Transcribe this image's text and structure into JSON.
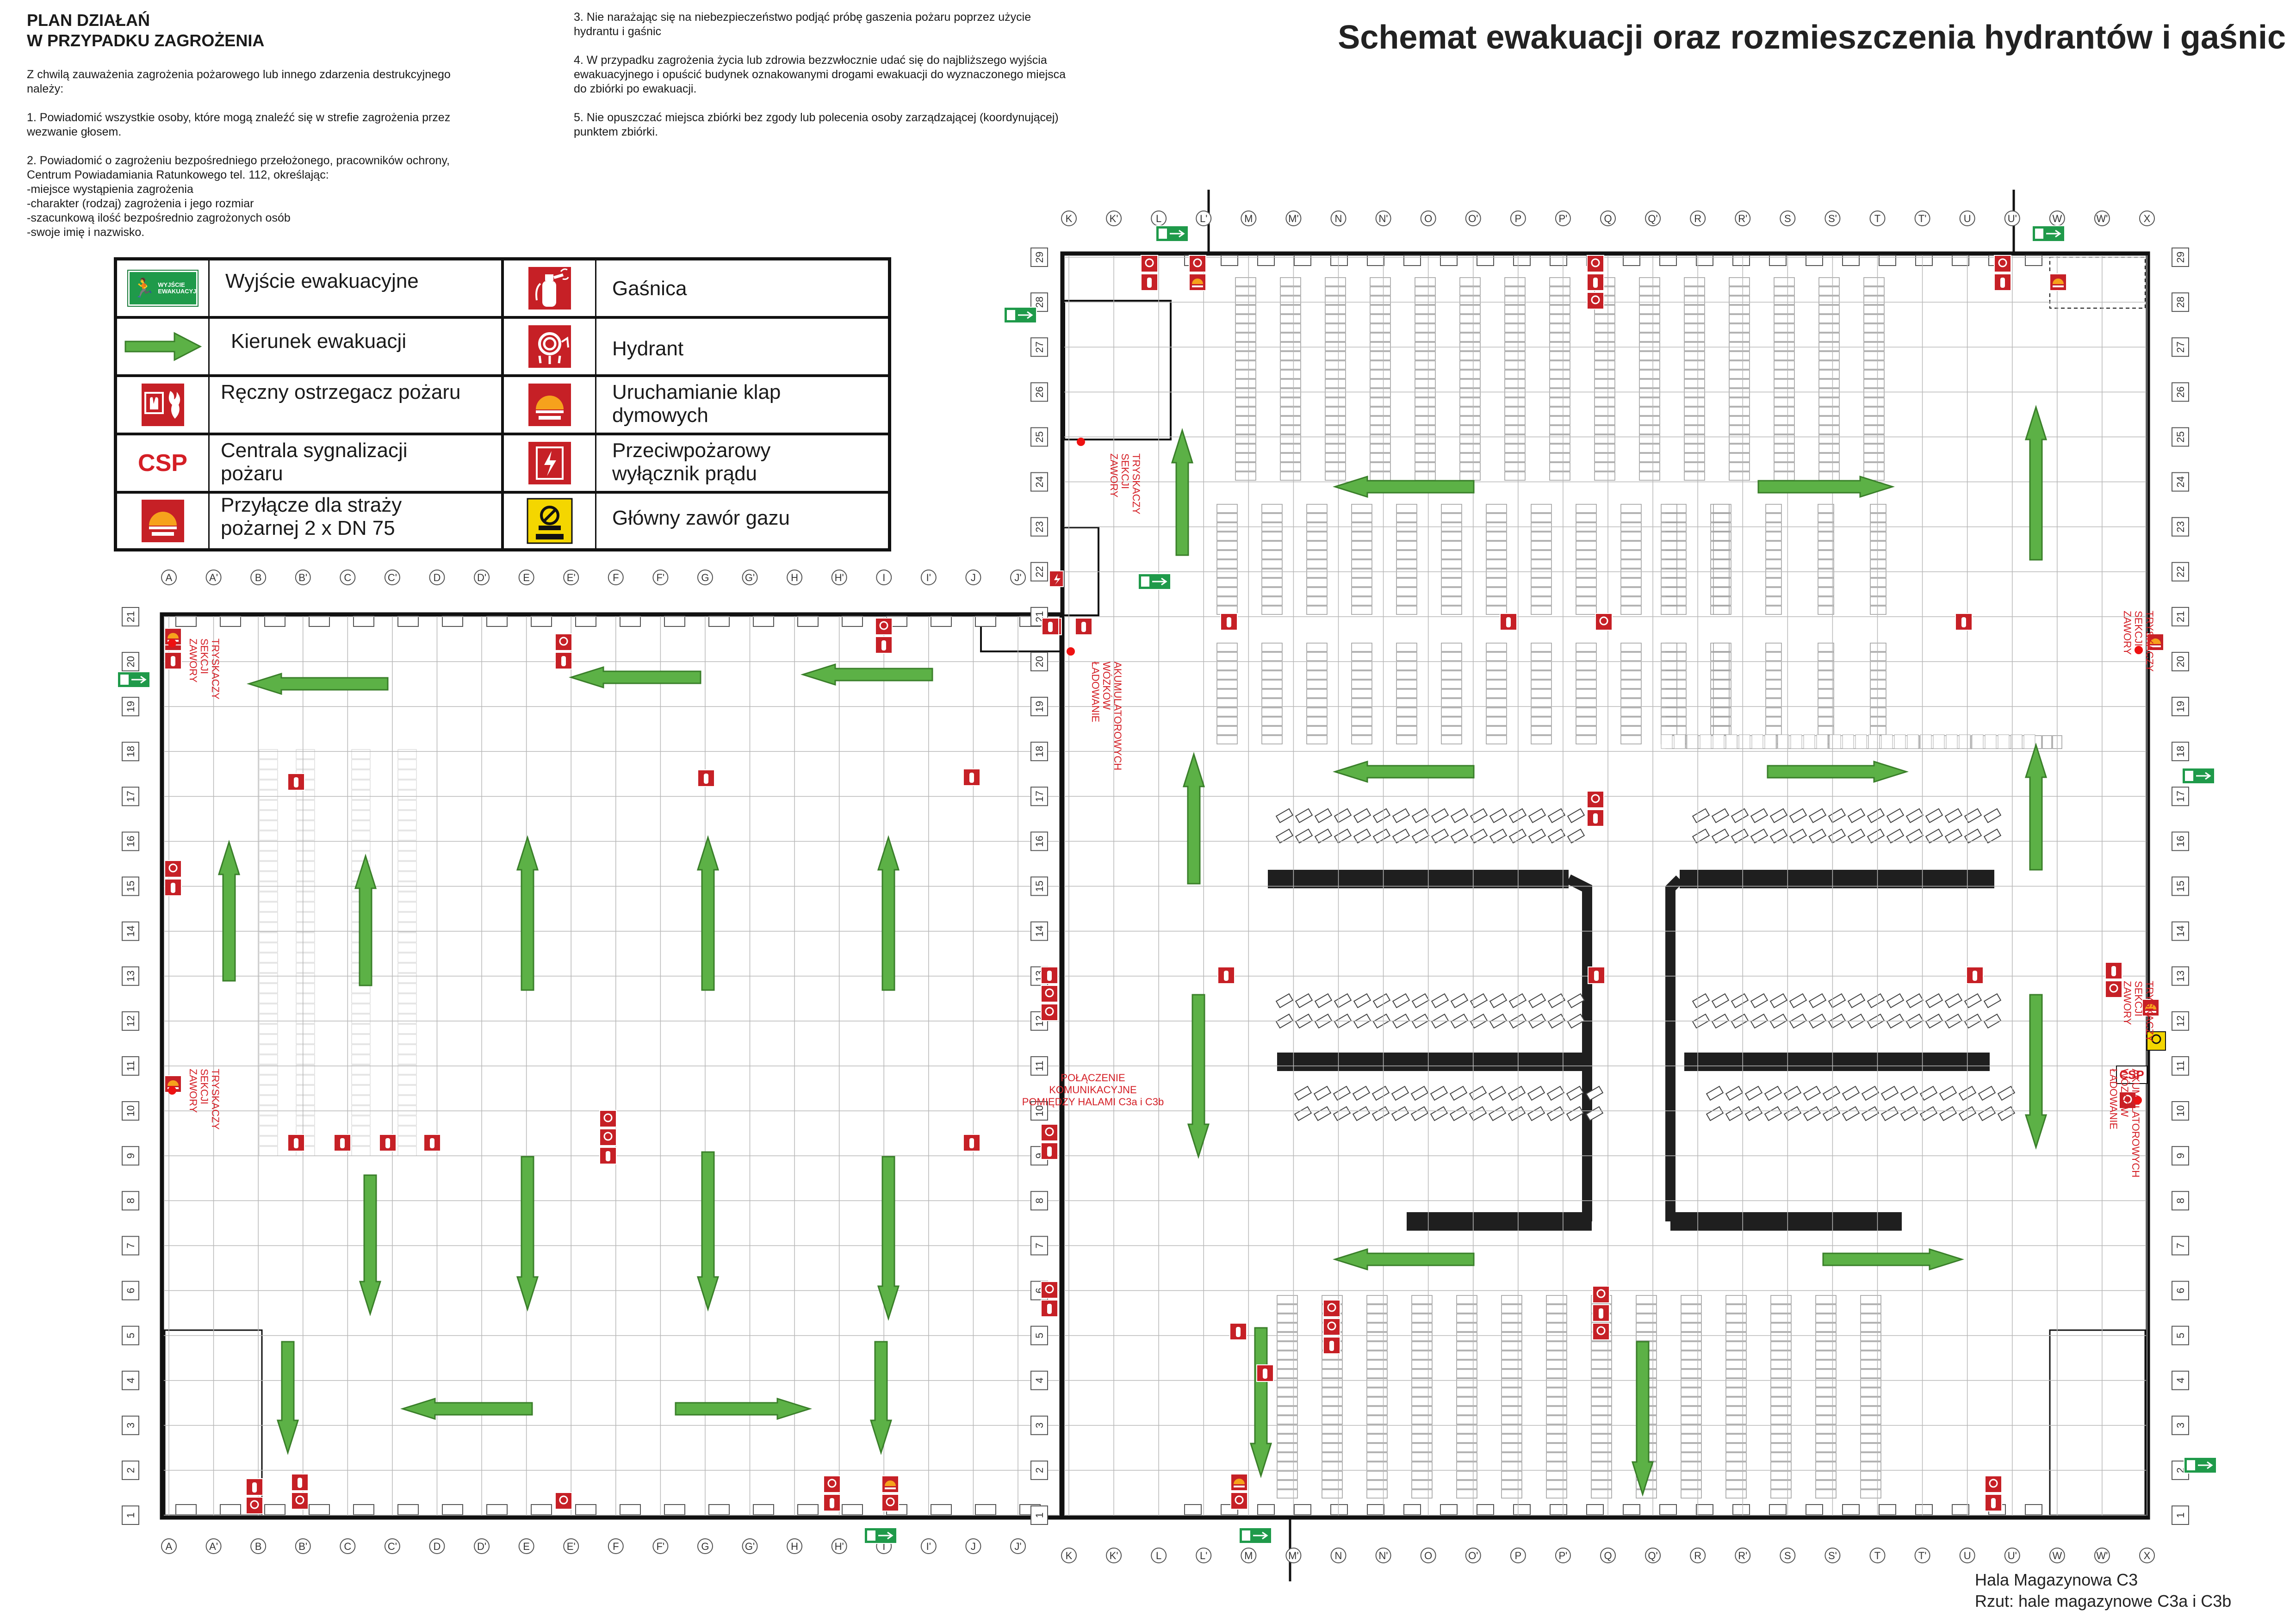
{
  "title": "Schemat ewakuacji oraz rozmieszczenia hydrantów i gaśnic",
  "plan": {
    "heading_line1": "PLAN DZIAŁAŃ",
    "heading_line2": "W PRZYPADKU ZAGROŻENIA",
    "intro": [
      "Z chwilą zauważenia zagrożenia pożarowego lub innego zdarzenia destrukcyjnego",
      "należy:"
    ],
    "step1": [
      "1. Powiadomić wszystkie osoby, które mogą znaleźć się w strefie zagrożenia przez",
      "wezwanie głosem."
    ],
    "step2": [
      "2. Powiadomić o zagrożeniu bezpośredniego przełożonego, pracowników ochrony,",
      "Centrum Powiadamiania Ratunkowego tel. 112, określając:",
      "-miejsce wystąpienia zagrożenia",
      "-charakter (rodzaj) zagrożenia i jego rozmiar",
      "-szacunkową ilość bezpośrednio zagrożonych osób",
      "-swoje imię i nazwisko."
    ],
    "step3": [
      "3. Nie narażając się na niebezpieczeństwo podjąć próbę gaszenia pożaru poprzez użycie",
      "hydrantu i gaśnic"
    ],
    "step4": [
      "4. W przypadku zagrożenia życia lub zdrowia bezzwłocznie udać się do najbliższego wyjścia",
      "ewakuacyjnego i opuścić budynek oznakowanymi drogami ewakuacji do wyznaczonego miejsca",
      "do zbiórki po ewakuacji."
    ],
    "step5": [
      "5. Nie opuszczać miejsca zbiórki bez zgody lub polecenia osoby zarządzającej (koordynującej)",
      "punktem zbiórki."
    ]
  },
  "legend": {
    "items": [
      {
        "key": "exit",
        "label1": "Wyjście ewakuacyjne",
        "label2": "",
        "icon": "exit-sign-icon"
      },
      {
        "key": "extinguisher",
        "label1": "Gaśnica",
        "label2": "",
        "icon": "fire-extinguisher-icon"
      },
      {
        "key": "direction",
        "label1": "Kierunek ewakuacji",
        "label2": "",
        "icon": "evacuation-arrow-icon"
      },
      {
        "key": "hydrant",
        "label1": "Hydrant",
        "label2": "",
        "icon": "hydrant-icon"
      },
      {
        "key": "callpoint",
        "label1": "Ręczny ostrzegacz pożaru",
        "label2": "",
        "icon": "manual-call-point-icon"
      },
      {
        "key": "smoke",
        "label1": "Uruchamianie klap",
        "label2": "dymowych",
        "icon": "smoke-vent-trigger-icon"
      },
      {
        "key": "csp",
        "label1": "Centrala sygnalizacji",
        "label2": "pożaru",
        "icon": "csp-icon",
        "code": "CSP"
      },
      {
        "key": "power",
        "label1": "Przeciwpożarowy",
        "label2": "wyłącznik prądu",
        "icon": "power-switch-icon"
      },
      {
        "key": "inlet",
        "label1": "Przyłącze dla straży",
        "label2": "pożarnej 2 x DN 75",
        "icon": "fire-brigade-inlet-icon"
      },
      {
        "key": "gas",
        "label1": "Główny zawór gazu",
        "label2": "",
        "icon": "gas-valve-icon"
      }
    ],
    "exit_sign_text": [
      "WYJŚCIE",
      "EWAKUACYJNE"
    ]
  },
  "grid": {
    "columns_left": [
      "A",
      "A'",
      "B",
      "B'",
      "C",
      "C'",
      "D",
      "D'",
      "E",
      "E'",
      "F",
      "F'",
      "G",
      "G'",
      "H",
      "H'",
      "I",
      "I'",
      "J",
      "J'"
    ],
    "columns_right": [
      "K",
      "K'",
      "L",
      "L'",
      "M",
      "M'",
      "N",
      "N'",
      "O",
      "O'",
      "P",
      "P'",
      "Q",
      "Q'",
      "R",
      "R'",
      "S",
      "S'",
      "T",
      "T'",
      "U",
      "U'",
      "W",
      "W'",
      "X"
    ],
    "rows_left": [
      "1",
      "2",
      "3",
      "4",
      "5",
      "6",
      "7",
      "8",
      "9",
      "10",
      "11",
      "12",
      "13",
      "14",
      "15",
      "16",
      "17",
      "18",
      "19",
      "20",
      "21"
    ],
    "rows_right": [
      "1",
      "2",
      "3",
      "4",
      "5",
      "6",
      "7",
      "8",
      "9",
      "10",
      "11",
      "12",
      "13",
      "14",
      "15",
      "16",
      "17",
      "18",
      "19",
      "20",
      "21",
      "22",
      "23",
      "24",
      "25",
      "26",
      "27",
      "28",
      "29"
    ]
  },
  "annotations": {
    "sprinkler_valves": [
      "ZAWORY",
      "SEKCJI",
      "TRYSKACZY"
    ],
    "battery_charging": [
      "ŁADOWANIE",
      "WÓZKÓW",
      "AKUMULATOROWYCH"
    ],
    "connection": [
      "POŁĄCZENIE",
      "KOMUNIKACYJNE",
      "POMIĘDZY HALAMI C3a i C3b"
    ]
  },
  "footer": {
    "line1": "Hala Magazynowa C3",
    "line2": "Rzut: hale magazynowe C3a i C3b"
  },
  "colors": {
    "sign_red": "#c62026",
    "arrow_green": "#5cb146",
    "exit_green": "#1f9a4a",
    "gas_yellow": "#f4d600",
    "label_red": "#d41e25"
  }
}
